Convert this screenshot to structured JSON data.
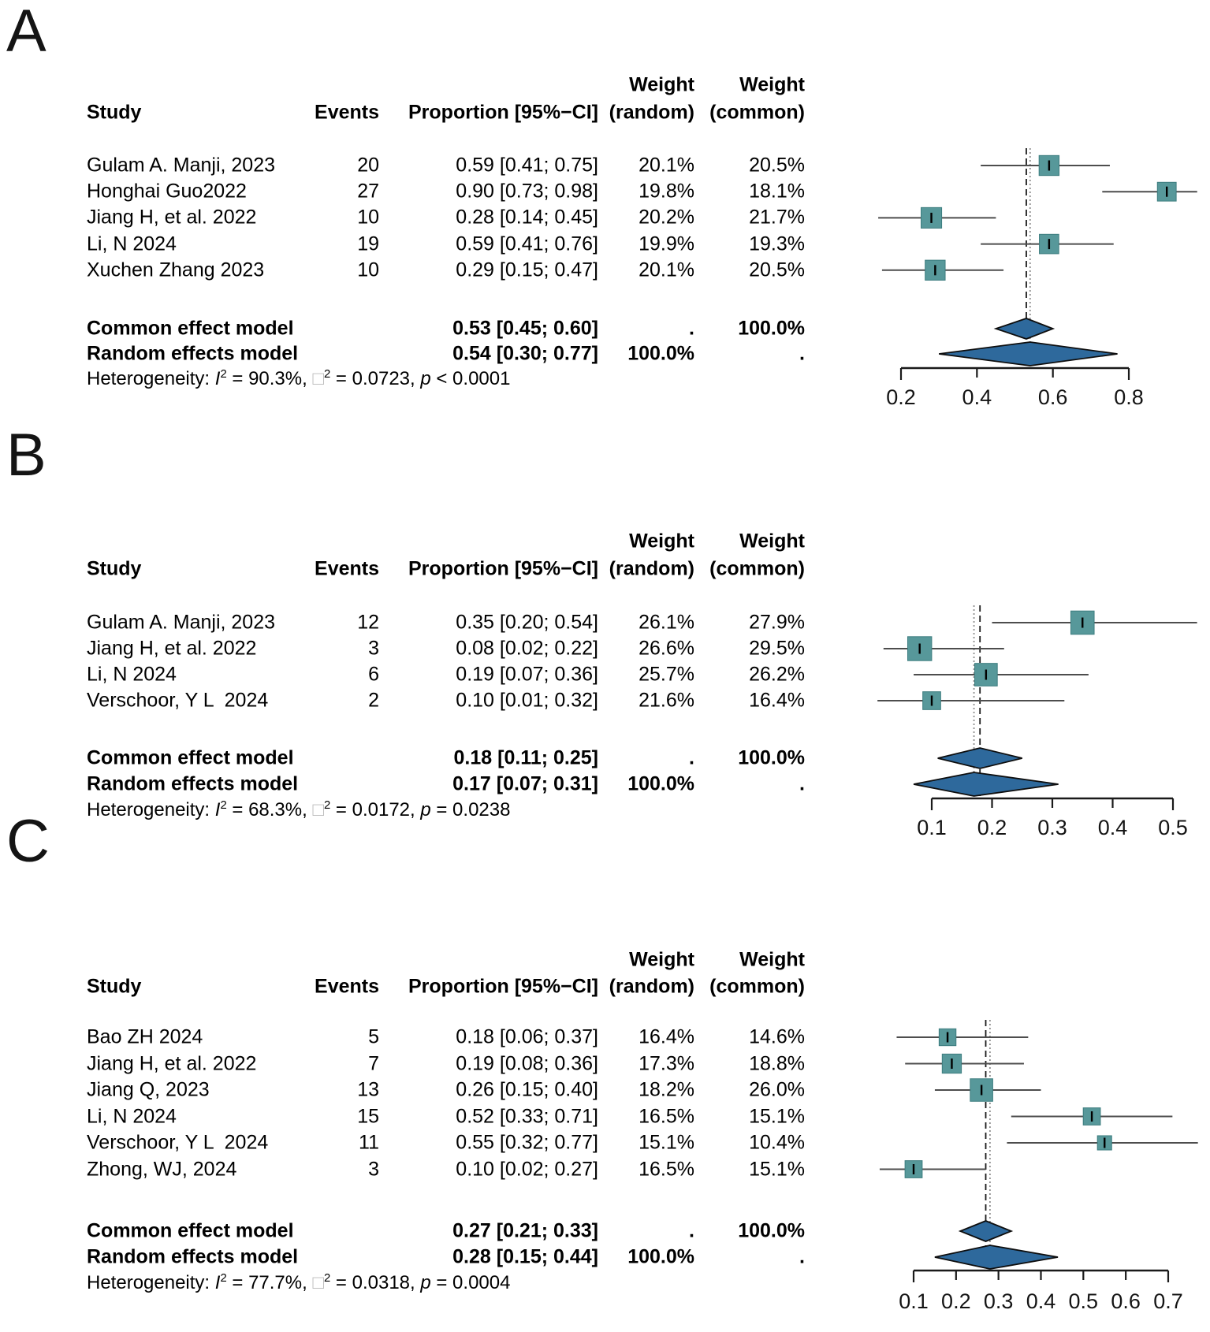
{
  "figure": {
    "background": "#ffffff"
  },
  "colors": {
    "square_fill": "#57989a",
    "square_border": "#3d7d7f",
    "diamond_fill": "#2e699c",
    "diamond_border": "#0e0e0e",
    "ci_line": "#4d4d4d",
    "common_line": "#1a1a1a",
    "random_line": "#8f8f8f",
    "axis": "#1a1a1a",
    "estimate_tick": "#000000"
  },
  "chart_data": [
    {
      "type": "forest",
      "panel_label": "A",
      "columns": {
        "study": "Study",
        "events": "Events",
        "proportion": "Proportion [95%−CI]",
        "weight_random_line1": "Weight",
        "weight_random_line2": "(random)",
        "weight_common_line1": "Weight",
        "weight_common_line2": "(common)"
      },
      "studies": [
        {
          "name": "Gulam A. Manji, 2023",
          "events": "20",
          "proportion": 0.59,
          "ci_low": 0.41,
          "ci_high": 0.75,
          "ci_text": "0.59 [0.41; 0.75]",
          "weight_random": "20.1%",
          "weight_common": "20.5%",
          "weight_common_value": 20.5
        },
        {
          "name": "Honghai Guo2022",
          "events": "27",
          "proportion": 0.9,
          "ci_low": 0.73,
          "ci_high": 0.98,
          "ci_text": "0.90 [0.73; 0.98]",
          "weight_random": "19.8%",
          "weight_common": "18.1%",
          "weight_common_value": 18.1
        },
        {
          "name": "Jiang H, et al. 2022",
          "events": "10",
          "proportion": 0.28,
          "ci_low": 0.14,
          "ci_high": 0.45,
          "ci_text": "0.28 [0.14; 0.45]",
          "weight_random": "20.2%",
          "weight_common": "21.7%",
          "weight_common_value": 21.7
        },
        {
          "name": "Li, N 2024",
          "events": "19",
          "proportion": 0.59,
          "ci_low": 0.41,
          "ci_high": 0.76,
          "ci_text": "0.59 [0.41; 0.76]",
          "weight_random": "19.9%",
          "weight_common": "19.3%",
          "weight_common_value": 19.3
        },
        {
          "name": "Xuchen Zhang 2023",
          "events": "10",
          "proportion": 0.29,
          "ci_low": 0.15,
          "ci_high": 0.47,
          "ci_text": "0.29 [0.15; 0.47]",
          "weight_random": "20.1%",
          "weight_common": "20.5%",
          "weight_common_value": 20.5
        }
      ],
      "models": [
        {
          "kind": "common",
          "label": "Common effect model",
          "proportion": 0.53,
          "ci_low": 0.45,
          "ci_high": 0.6,
          "ci_text": "0.53 [0.45; 0.60]",
          "weight_random": ".",
          "weight_common": "100.0%"
        },
        {
          "kind": "random",
          "label": "Random effects model",
          "proportion": 0.54,
          "ci_low": 0.3,
          "ci_high": 0.77,
          "ci_text": "0.54 [0.30; 0.77]",
          "weight_random": "100.0%",
          "weight_common": "."
        }
      ],
      "heterogeneity": [
        {
          "t": "Heterogeneity: "
        },
        {
          "t": "I",
          "italic": true,
          "sup": "2"
        },
        {
          "t": " = 90.3%, "
        },
        {
          "t": "□",
          "sup": "2",
          "muted": true
        },
        {
          "t": " = 0.0723, "
        },
        {
          "t": "p",
          "italic": true
        },
        {
          "t": " < 0.0001"
        }
      ],
      "axis": {
        "tick_values": [
          0.2,
          0.4,
          0.6,
          0.8
        ],
        "tick_labels": [
          "0.2",
          "0.4",
          "0.6",
          "0.8"
        ],
        "range": [
          0.2,
          0.8
        ]
      }
    },
    {
      "type": "forest",
      "panel_label": "B",
      "columns": {
        "study": "Study",
        "events": "Events",
        "proportion": "Proportion [95%−CI]",
        "weight_random_line1": "Weight",
        "weight_random_line2": "(random)",
        "weight_common_line1": "Weight",
        "weight_common_line2": "(common)"
      },
      "studies": [
        {
          "name": "Gulam A. Manji, 2023",
          "events": "12",
          "proportion": 0.35,
          "ci_low": 0.2,
          "ci_high": 0.54,
          "ci_text": "0.35 [0.20; 0.54]",
          "weight_random": "26.1%",
          "weight_common": "27.9%",
          "weight_common_value": 27.9
        },
        {
          "name": "Jiang H, et al. 2022",
          "events": "3",
          "proportion": 0.08,
          "ci_low": 0.02,
          "ci_high": 0.22,
          "ci_text": "0.08 [0.02; 0.22]",
          "weight_random": "26.6%",
          "weight_common": "29.5%",
          "weight_common_value": 29.5
        },
        {
          "name": "Li, N 2024",
          "events": "6",
          "proportion": 0.19,
          "ci_low": 0.07,
          "ci_high": 0.36,
          "ci_text": "0.19 [0.07; 0.36]",
          "weight_random": "25.7%",
          "weight_common": "26.2%",
          "weight_common_value": 26.2
        },
        {
          "name": "Verschoor, Y L  2024",
          "events": "2",
          "proportion": 0.1,
          "ci_low": 0.01,
          "ci_high": 0.32,
          "ci_text": "0.10 [0.01; 0.32]",
          "weight_random": "21.6%",
          "weight_common": "16.4%",
          "weight_common_value": 16.4
        }
      ],
      "models": [
        {
          "kind": "common",
          "label": "Common effect model",
          "proportion": 0.18,
          "ci_low": 0.11,
          "ci_high": 0.25,
          "ci_text": "0.18 [0.11; 0.25]",
          "weight_random": ".",
          "weight_common": "100.0%"
        },
        {
          "kind": "random",
          "label": "Random effects model",
          "proportion": 0.17,
          "ci_low": 0.07,
          "ci_high": 0.31,
          "ci_text": "0.17 [0.07; 0.31]",
          "weight_random": "100.0%",
          "weight_common": "."
        }
      ],
      "heterogeneity": [
        {
          "t": "Heterogeneity: "
        },
        {
          "t": "I",
          "italic": true,
          "sup": "2"
        },
        {
          "t": " = 68.3%, "
        },
        {
          "t": "□",
          "sup": "2",
          "muted": true
        },
        {
          "t": " = 0.0172, "
        },
        {
          "t": "p",
          "italic": true
        },
        {
          "t": " = 0.0238"
        }
      ],
      "axis": {
        "tick_values": [
          0.1,
          0.2,
          0.3,
          0.4,
          0.5
        ],
        "tick_labels": [
          "0.1",
          "0.2",
          "0.3",
          "0.4",
          "0.5"
        ],
        "range": [
          0.1,
          0.5
        ]
      }
    },
    {
      "type": "forest",
      "panel_label": "C",
      "columns": {
        "study": "Study",
        "events": "Events",
        "proportion": "Proportion [95%−CI]",
        "weight_random_line1": "Weight",
        "weight_random_line2": "(random)",
        "weight_common_line1": "Weight",
        "weight_common_line2": "(common)"
      },
      "studies": [
        {
          "name": "Bao ZH 2024",
          "events": "5",
          "proportion": 0.18,
          "ci_low": 0.06,
          "ci_high": 0.37,
          "ci_text": "0.18 [0.06; 0.37]",
          "weight_random": "16.4%",
          "weight_common": "14.6%",
          "weight_common_value": 14.6
        },
        {
          "name": "Jiang H, et al. 2022",
          "events": "7",
          "proportion": 0.19,
          "ci_low": 0.08,
          "ci_high": 0.36,
          "ci_text": "0.19 [0.08; 0.36]",
          "weight_random": "17.3%",
          "weight_common": "18.8%",
          "weight_common_value": 18.8
        },
        {
          "name": "Jiang Q, 2023",
          "events": "13",
          "proportion": 0.26,
          "ci_low": 0.15,
          "ci_high": 0.4,
          "ci_text": "0.26 [0.15; 0.40]",
          "weight_random": "18.2%",
          "weight_common": "26.0%",
          "weight_common_value": 26.0
        },
        {
          "name": "Li, N 2024",
          "events": "15",
          "proportion": 0.52,
          "ci_low": 0.33,
          "ci_high": 0.71,
          "ci_text": "0.52 [0.33; 0.71]",
          "weight_random": "16.5%",
          "weight_common": "15.1%",
          "weight_common_value": 15.1
        },
        {
          "name": "Verschoor, Y L  2024",
          "events": "11",
          "proportion": 0.55,
          "ci_low": 0.32,
          "ci_high": 0.77,
          "ci_text": "0.55 [0.32; 0.77]",
          "weight_random": "15.1%",
          "weight_common": "10.4%",
          "weight_common_value": 10.4
        },
        {
          "name": "Zhong, WJ, 2024",
          "events": "3",
          "proportion": 0.1,
          "ci_low": 0.02,
          "ci_high": 0.27,
          "ci_text": "0.10 [0.02; 0.27]",
          "weight_random": "16.5%",
          "weight_common": "15.1%",
          "weight_common_value": 15.1
        }
      ],
      "models": [
        {
          "kind": "common",
          "label": "Common effect model",
          "proportion": 0.27,
          "ci_low": 0.21,
          "ci_high": 0.33,
          "ci_text": "0.27 [0.21; 0.33]",
          "weight_random": ".",
          "weight_common": "100.0%"
        },
        {
          "kind": "random",
          "label": "Random effects model",
          "proportion": 0.28,
          "ci_low": 0.15,
          "ci_high": 0.44,
          "ci_text": "0.28 [0.15; 0.44]",
          "weight_random": "100.0%",
          "weight_common": "."
        }
      ],
      "heterogeneity": [
        {
          "t": "Heterogeneity: "
        },
        {
          "t": "I",
          "italic": true,
          "sup": "2"
        },
        {
          "t": " = 77.7%, "
        },
        {
          "t": "□",
          "sup": "2",
          "muted": true
        },
        {
          "t": " = 0.0318, "
        },
        {
          "t": "p",
          "italic": true
        },
        {
          "t": " = 0.0004"
        }
      ],
      "axis": {
        "tick_values": [
          0.1,
          0.2,
          0.3,
          0.4,
          0.5,
          0.6,
          0.7
        ],
        "tick_labels": [
          "0.1",
          "0.2",
          "0.3",
          "0.4",
          "0.5",
          "0.6",
          "0.7"
        ],
        "range": [
          0.1,
          0.7
        ]
      }
    }
  ]
}
